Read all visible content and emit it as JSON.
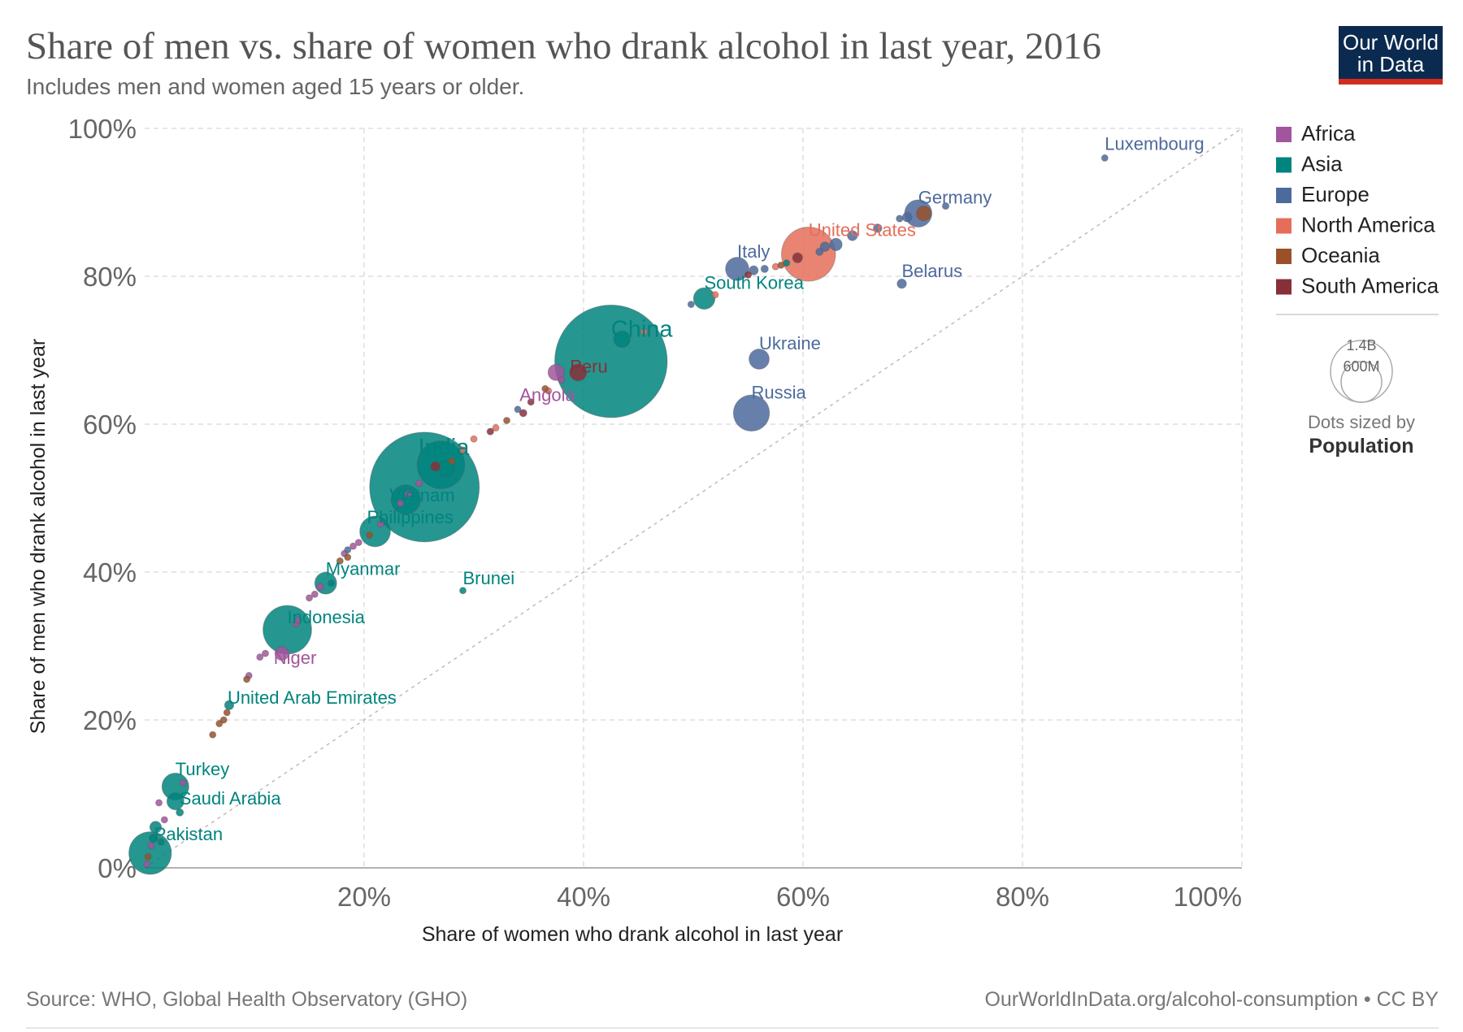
{
  "header": {
    "title": "Share of men vs. share of women who drank alcohol in last year, 2016",
    "subtitle": "Includes men and women aged 15 years or older."
  },
  "logo": {
    "line1": "Our World",
    "line2": "in Data",
    "bg": "#0b2a4f",
    "accent": "#d42b21"
  },
  "legend": {
    "items": [
      {
        "label": "Africa",
        "color": "#a2559c"
      },
      {
        "label": "Asia",
        "color": "#00847e"
      },
      {
        "label": "Europe",
        "color": "#4c6a9c"
      },
      {
        "label": "North America",
        "color": "#e56e5a"
      },
      {
        "label": "Oceania",
        "color": "#9a5129"
      },
      {
        "label": "South America",
        "color": "#883039"
      }
    ],
    "size_ref_big": "1.4B",
    "size_ref_small": "600M",
    "size_note": "Dots sized by",
    "size_note_bold": "Population"
  },
  "footer": {
    "source": "Source: WHO, Global Health Observatory (GHO)",
    "url": "OurWorldInData.org/alcohol-consumption • CC BY"
  },
  "chart_data": {
    "type": "scatter",
    "title": "Share of men vs. share of women who drank alcohol in last year, 2016",
    "xlabel": "Share of women who drank alcohol in last year",
    "ylabel": "Share of men who drank alcohol in last year",
    "xlim": [
      0,
      100
    ],
    "ylim": [
      0,
      100
    ],
    "x_ticks": [
      "20%",
      "40%",
      "60%",
      "80%",
      "100%"
    ],
    "y_ticks": [
      "0%",
      "20%",
      "40%",
      "60%",
      "80%",
      "100%"
    ],
    "diagonal": "y = x reference line",
    "size_variable": "Population",
    "labeled_points": [
      {
        "label": "Luxembourg",
        "region": "Europe",
        "x": 87.5,
        "y": 96,
        "pop_m": 0.6
      },
      {
        "label": "Germany",
        "region": "Europe",
        "x": 70.5,
        "y": 88.5,
        "pop_m": 82
      },
      {
        "label": "United States",
        "region": "North America",
        "x": 60.5,
        "y": 83,
        "pop_m": 323
      },
      {
        "label": "Italy",
        "region": "Europe",
        "x": 54,
        "y": 81,
        "pop_m": 60
      },
      {
        "label": "Belarus",
        "region": "Europe",
        "x": 69,
        "y": 79,
        "pop_m": 9.5
      },
      {
        "label": "South Korea",
        "region": "Asia",
        "x": 51,
        "y": 77,
        "pop_m": 51
      },
      {
        "label": "China",
        "region": "Asia",
        "x": 42.5,
        "y": 68.5,
        "pop_m": 1400
      },
      {
        "label": "Peru",
        "region": "South America",
        "x": 39.5,
        "y": 67,
        "pop_m": 32
      },
      {
        "label": "Ukraine",
        "region": "Europe",
        "x": 56,
        "y": 68.8,
        "pop_m": 45
      },
      {
        "label": "Angola",
        "region": "Africa",
        "x": 37.5,
        "y": 67,
        "pop_m": 29
      },
      {
        "label": "Russia",
        "region": "Europe",
        "x": 55.3,
        "y": 61.5,
        "pop_m": 144
      },
      {
        "label": "India",
        "region": "Asia",
        "x": 27,
        "y": 54.5,
        "pop_m": 250
      },
      {
        "label": "Vietnam",
        "region": "Asia",
        "x": 23.8,
        "y": 49.8,
        "pop_m": 95
      },
      {
        "label": "Philippines",
        "region": "Asia",
        "x": 21,
        "y": 45.5,
        "pop_m": 104
      },
      {
        "label": "Myanmar",
        "region": "Asia",
        "x": 16.5,
        "y": 38.5,
        "pop_m": 53
      },
      {
        "label": "Brunei",
        "region": "Asia",
        "x": 29,
        "y": 37.5,
        "pop_m": 0.4
      },
      {
        "label": "Indonesia",
        "region": "Asia",
        "x": 13,
        "y": 32.2,
        "pop_m": 261
      },
      {
        "label": "Niger",
        "region": "Africa",
        "x": 12.5,
        "y": 29,
        "pop_m": 21
      },
      {
        "label": "United Arab Emirates",
        "region": "Asia",
        "x": 7.7,
        "y": 22,
        "pop_m": 9.3
      },
      {
        "label": "Turkey",
        "region": "Asia",
        "x": 2.8,
        "y": 11,
        "pop_m": 80
      },
      {
        "label": "Saudi Arabia",
        "region": "Asia",
        "x": 2.8,
        "y": 9,
        "pop_m": 32
      },
      {
        "label": "Pakistan",
        "region": "Asia",
        "x": 0.5,
        "y": 2,
        "pop_m": 200
      }
    ],
    "other_points": [
      {
        "region": "Asia",
        "x": 25.5,
        "y": 51.5,
        "pop_m": 1330
      },
      {
        "region": "Asia",
        "x": 43.5,
        "y": 71.5,
        "pop_m": 30
      },
      {
        "region": "North America",
        "x": 45.5,
        "y": 72.5,
        "pop_m": 3
      },
      {
        "region": "Europe",
        "x": 49.8,
        "y": 76.2,
        "pop_m": 2
      },
      {
        "region": "North America",
        "x": 52,
        "y": 77.5,
        "pop_m": 4
      },
      {
        "region": "Europe",
        "x": 55.5,
        "y": 80.8,
        "pop_m": 9
      },
      {
        "region": "Europe",
        "x": 56.5,
        "y": 81,
        "pop_m": 6
      },
      {
        "region": "North America",
        "x": 57.5,
        "y": 81.3,
        "pop_m": 3
      },
      {
        "region": "South America",
        "x": 55,
        "y": 80.2,
        "pop_m": 5
      },
      {
        "region": "Oceania",
        "x": 58,
        "y": 81.5,
        "pop_m": 2
      },
      {
        "region": "Asia",
        "x": 58.5,
        "y": 81.8,
        "pop_m": 3
      },
      {
        "region": "Europe",
        "x": 62,
        "y": 84,
        "pop_m": 10
      },
      {
        "region": "Europe",
        "x": 63,
        "y": 84.3,
        "pop_m": 17
      },
      {
        "region": "Europe",
        "x": 64.5,
        "y": 85.5,
        "pop_m": 11
      },
      {
        "region": "Europe",
        "x": 66.8,
        "y": 86.5,
        "pop_m": 8
      },
      {
        "region": "Europe",
        "x": 68.8,
        "y": 87.8,
        "pop_m": 5
      },
      {
        "region": "Europe",
        "x": 69.5,
        "y": 88,
        "pop_m": 10
      },
      {
        "region": "Oceania",
        "x": 71,
        "y": 88.5,
        "pop_m": 24
      },
      {
        "region": "Europe",
        "x": 73,
        "y": 89.5,
        "pop_m": 5
      },
      {
        "region": "South America",
        "x": 59.5,
        "y": 82.5,
        "pop_m": 11
      },
      {
        "region": "Europe",
        "x": 61.5,
        "y": 83.3,
        "pop_m": 6
      },
      {
        "region": "Africa",
        "x": 38,
        "y": 66,
        "pop_m": 3
      },
      {
        "region": "North America",
        "x": 36.8,
        "y": 64.5,
        "pop_m": 3
      },
      {
        "region": "Oceania",
        "x": 36.5,
        "y": 64.8,
        "pop_m": 2
      },
      {
        "region": "South America",
        "x": 35.2,
        "y": 63,
        "pop_m": 3
      },
      {
        "region": "Europe",
        "x": 34,
        "y": 62,
        "pop_m": 2
      },
      {
        "region": "South America",
        "x": 34.5,
        "y": 61.5,
        "pop_m": 6
      },
      {
        "region": "Oceania",
        "x": 33,
        "y": 60.5,
        "pop_m": 2
      },
      {
        "region": "North America",
        "x": 32,
        "y": 59.5,
        "pop_m": 3
      },
      {
        "region": "South America",
        "x": 31.5,
        "y": 59,
        "pop_m": 5
      },
      {
        "region": "North America",
        "x": 30,
        "y": 58,
        "pop_m": 2
      },
      {
        "region": "North America",
        "x": 29,
        "y": 56.5,
        "pop_m": 3
      },
      {
        "region": "Oceania",
        "x": 28,
        "y": 55,
        "pop_m": 2
      },
      {
        "region": "South America",
        "x": 26.5,
        "y": 54.3,
        "pop_m": 10
      },
      {
        "region": "Asia",
        "x": 27.5,
        "y": 54,
        "pop_m": 30
      },
      {
        "region": "Africa",
        "x": 25,
        "y": 52,
        "pop_m": 5
      },
      {
        "region": "Africa",
        "x": 24,
        "y": 50.5,
        "pop_m": 6
      },
      {
        "region": "Africa",
        "x": 23.3,
        "y": 49.3,
        "pop_m": 4
      },
      {
        "region": "Africa",
        "x": 21.5,
        "y": 46.5,
        "pop_m": 3
      },
      {
        "region": "Oceania",
        "x": 20.5,
        "y": 45,
        "pop_m": 2
      },
      {
        "region": "Africa",
        "x": 19.5,
        "y": 44,
        "pop_m": 4
      },
      {
        "region": "Africa",
        "x": 19,
        "y": 43.5,
        "pop_m": 3
      },
      {
        "region": "Europe",
        "x": 18.5,
        "y": 43,
        "pop_m": 2
      },
      {
        "region": "Africa",
        "x": 18.2,
        "y": 42.5,
        "pop_m": 3
      },
      {
        "region": "Oceania",
        "x": 18.5,
        "y": 42,
        "pop_m": 2
      },
      {
        "region": "Oceania",
        "x": 17.8,
        "y": 41.5,
        "pop_m": 2
      },
      {
        "region": "Africa",
        "x": 16,
        "y": 38,
        "pop_m": 6
      },
      {
        "region": "Asia",
        "x": 17,
        "y": 38.5,
        "pop_m": 4
      },
      {
        "region": "Africa",
        "x": 15.5,
        "y": 37,
        "pop_m": 4
      },
      {
        "region": "Africa",
        "x": 15,
        "y": 36.5,
        "pop_m": 3
      },
      {
        "region": "Africa",
        "x": 14,
        "y": 33.5,
        "pop_m": 3
      },
      {
        "region": "Africa",
        "x": 13.8,
        "y": 33,
        "pop_m": 4
      },
      {
        "region": "Africa",
        "x": 11,
        "y": 29,
        "pop_m": 3
      },
      {
        "region": "Africa",
        "x": 10.5,
        "y": 28.5,
        "pop_m": 3
      },
      {
        "region": "Africa",
        "x": 9.5,
        "y": 26,
        "pop_m": 4
      },
      {
        "region": "Oceania",
        "x": 9.3,
        "y": 25.5,
        "pop_m": 2
      },
      {
        "region": "Oceania",
        "x": 7.5,
        "y": 21,
        "pop_m": 2
      },
      {
        "region": "Oceania",
        "x": 7.2,
        "y": 20,
        "pop_m": 2
      },
      {
        "region": "Oceania",
        "x": 6.8,
        "y": 19.5,
        "pop_m": 2
      },
      {
        "region": "Oceania",
        "x": 6.2,
        "y": 18,
        "pop_m": 2
      },
      {
        "region": "Africa",
        "x": 3.5,
        "y": 11.5,
        "pop_m": 2
      },
      {
        "region": "Asia",
        "x": 3.2,
        "y": 7.5,
        "pop_m": 6
      },
      {
        "region": "Africa",
        "x": 1.3,
        "y": 8.8,
        "pop_m": 2
      },
      {
        "region": "Africa",
        "x": 1.8,
        "y": 6.5,
        "pop_m": 2
      },
      {
        "region": "Asia",
        "x": 1,
        "y": 5.5,
        "pop_m": 15
      },
      {
        "region": "Asia",
        "x": 0.8,
        "y": 4,
        "pop_m": 8
      },
      {
        "region": "Africa",
        "x": 0.6,
        "y": 3,
        "pop_m": 3
      },
      {
        "region": "Oceania",
        "x": 0.3,
        "y": 1.5,
        "pop_m": 2
      },
      {
        "region": "Africa",
        "x": 0.2,
        "y": 0.5,
        "pop_m": 3
      },
      {
        "region": "Asia",
        "x": 1.5,
        "y": 3.5,
        "pop_m": 4
      }
    ]
  }
}
